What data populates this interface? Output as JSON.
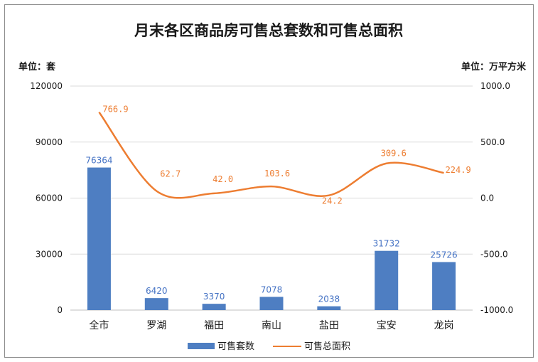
{
  "chart_data": {
    "type": "bar",
    "title": "月末各区商品房可售总套数和可售总面积",
    "y_left_unit": "单位：套",
    "y_right_unit": "单位：万平方米",
    "categories": [
      "全市",
      "罗湖",
      "福田",
      "南山",
      "盐田",
      "宝安",
      "龙岗"
    ],
    "series": [
      {
        "name": "可售套数",
        "type": "bar",
        "axis": "left",
        "color": "#4e7ec2",
        "values": [
          76364,
          6420,
          3370,
          7078,
          2038,
          31732,
          25726
        ],
        "labels": [
          "76364",
          "6420",
          "3370",
          "7078",
          "2038",
          "31732",
          "25726"
        ]
      },
      {
        "name": "可售总面积",
        "type": "line",
        "axis": "right",
        "color": "#ed7d31",
        "values": [
          766.9,
          62.7,
          42.0,
          103.6,
          24.2,
          309.6,
          224.9
        ],
        "labels": [
          "766.9",
          "62.7",
          "42.0",
          "103.6",
          "24.2",
          "309.6",
          "224.9"
        ]
      }
    ],
    "y_left": {
      "ylim": [
        0,
        120000
      ],
      "ticks": [
        "120000",
        "90000",
        "60000",
        "30000",
        "0"
      ]
    },
    "y_right": {
      "ylim": [
        -1000,
        1000
      ],
      "ticks": [
        "1000.0",
        "500.0",
        "0.0",
        "-500.0",
        "-1000.0"
      ]
    },
    "grid": true,
    "legend": "bottom"
  }
}
